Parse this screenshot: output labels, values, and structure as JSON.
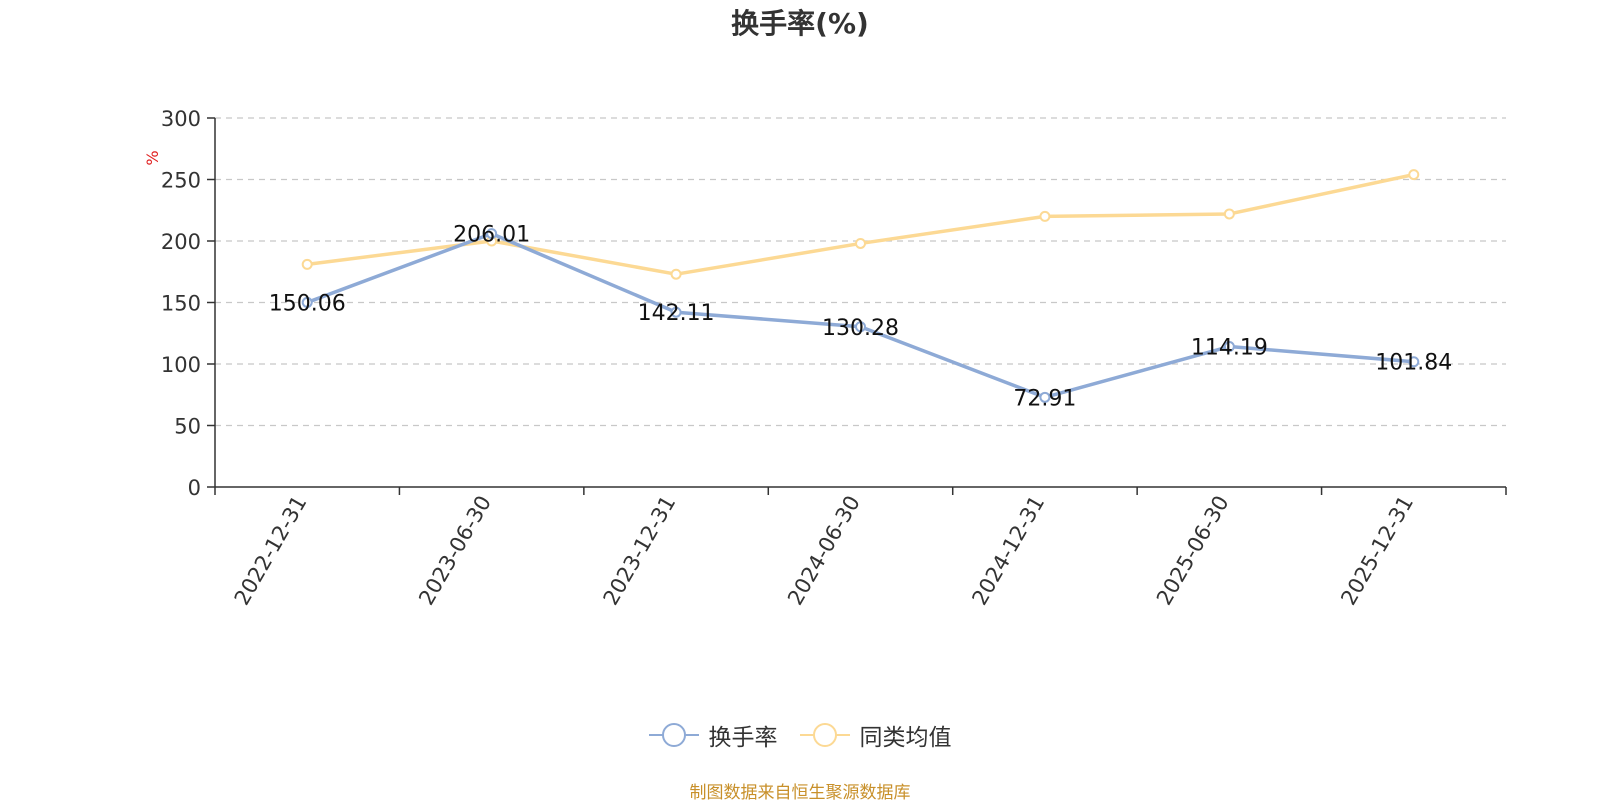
{
  "title": "换手率(%)",
  "source_note": "制图数据来自恒生聚源数据库",
  "colors": {
    "series_1": "#8eaad6",
    "series_2": "#fcd994",
    "axis": "#333333",
    "grid": "#c8c8c8",
    "unit": "#e02020",
    "source": "#c8902a"
  },
  "legend": {
    "items": [
      {
        "label": "换手率",
        "icon": "circle-line-marker-icon"
      },
      {
        "label": "同类均值",
        "icon": "circle-line-marker-icon"
      }
    ]
  },
  "chart_data": {
    "type": "line",
    "title": "换手率(%)",
    "ylabel": "%",
    "xlabel": "",
    "ylim": [
      0,
      300
    ],
    "yticks": [
      0,
      50,
      100,
      150,
      200,
      250,
      300
    ],
    "grid": true,
    "legend_position": "bottom",
    "categories": [
      "2022-12-31",
      "2023-06-30",
      "2023-12-31",
      "2024-06-30",
      "2024-12-31",
      "2025-06-30",
      "2025-12-31"
    ],
    "series": [
      {
        "name": "换手率",
        "values": [
          150.06,
          206.01,
          142.11,
          130.28,
          72.91,
          114.19,
          101.84
        ],
        "data_labels": [
          "150.06",
          "206.01",
          "142.11",
          "130.28",
          "72.91",
          "114.19",
          "101.84"
        ]
      },
      {
        "name": "同类均值",
        "values": [
          181,
          200,
          173,
          198,
          220,
          222,
          254
        ]
      }
    ]
  }
}
